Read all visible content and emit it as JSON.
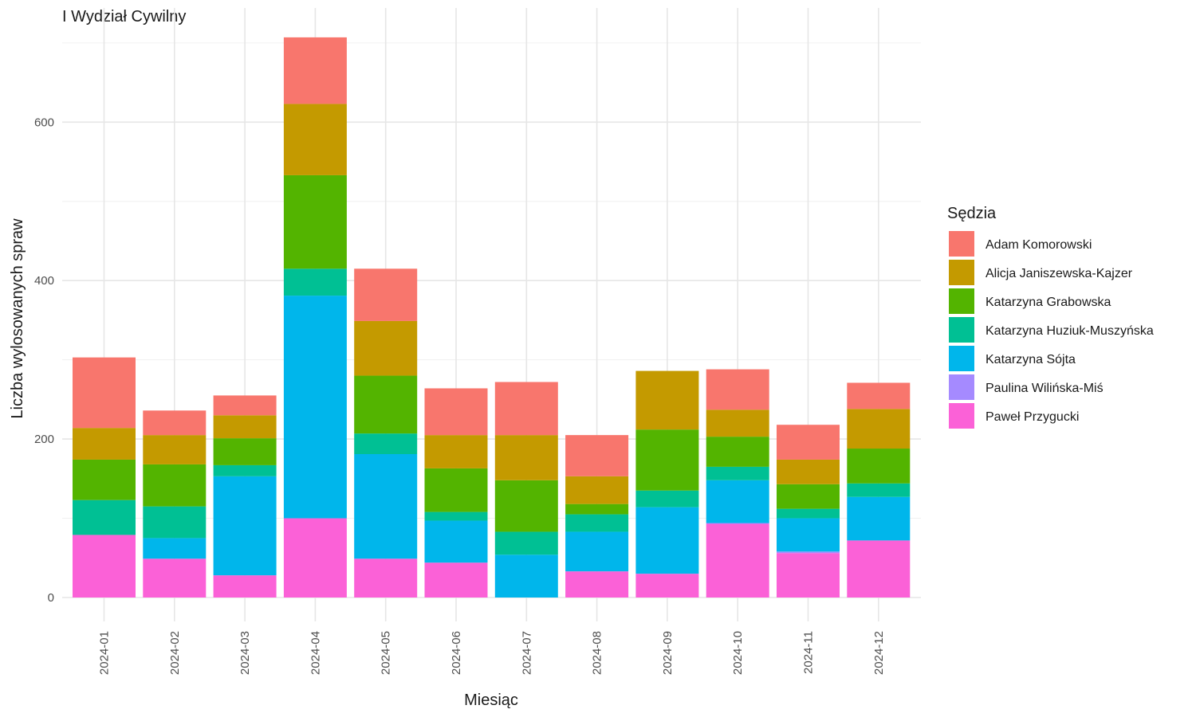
{
  "title": "I Wydział Cywilny",
  "chart_data": {
    "type": "bar",
    "stacked": true,
    "title": "I Wydział Cywilny",
    "xlabel": "Miesiąc",
    "ylabel": "Liczba wylosowanych spraw",
    "categories": [
      "2024-01",
      "2024-02",
      "2024-03",
      "2024-04",
      "2024-05",
      "2024-06",
      "2024-07",
      "2024-08",
      "2024-09",
      "2024-10",
      "2024-11",
      "2024-12"
    ],
    "ylim": [
      -30,
      715
    ],
    "yticks": [
      0,
      200,
      400,
      600
    ],
    "grid": true,
    "legend": {
      "title": "Sędzia",
      "position": "right"
    },
    "series": [
      {
        "name": "Paweł Przygucki",
        "color": "#FB61D7",
        "values": [
          79,
          49,
          28,
          100,
          49,
          44,
          0,
          33,
          30,
          93,
          56,
          72
        ]
      },
      {
        "name": "Paulina Wilińska-Miś",
        "color": "#A58AFF",
        "values": [
          0,
          0,
          0,
          0,
          0,
          0,
          0,
          0,
          0,
          1,
          2,
          0
        ]
      },
      {
        "name": "Katarzyna Sójta",
        "color": "#00B6EB",
        "values": [
          0,
          26,
          125,
          281,
          132,
          53,
          54,
          50,
          84,
          54,
          42,
          55
        ]
      },
      {
        "name": "Katarzyna Huziuk-Muszyńska",
        "color": "#00C094",
        "values": [
          44,
          40,
          14,
          34,
          26,
          11,
          29,
          22,
          21,
          17,
          12,
          17
        ]
      },
      {
        "name": "Katarzyna Grabowska",
        "color": "#53B400",
        "values": [
          51,
          53,
          34,
          118,
          73,
          55,
          65,
          13,
          77,
          38,
          31,
          44
        ]
      },
      {
        "name": "Alicja Janiszewska-Kajzer",
        "color": "#C49A00",
        "values": [
          40,
          37,
          29,
          90,
          69,
          42,
          57,
          35,
          74,
          34,
          31,
          50
        ]
      },
      {
        "name": "Adam Komorowski",
        "color": "#F8766D",
        "values": [
          89,
          31,
          25,
          84,
          66,
          59,
          67,
          52,
          0,
          51,
          44,
          33
        ]
      }
    ]
  }
}
